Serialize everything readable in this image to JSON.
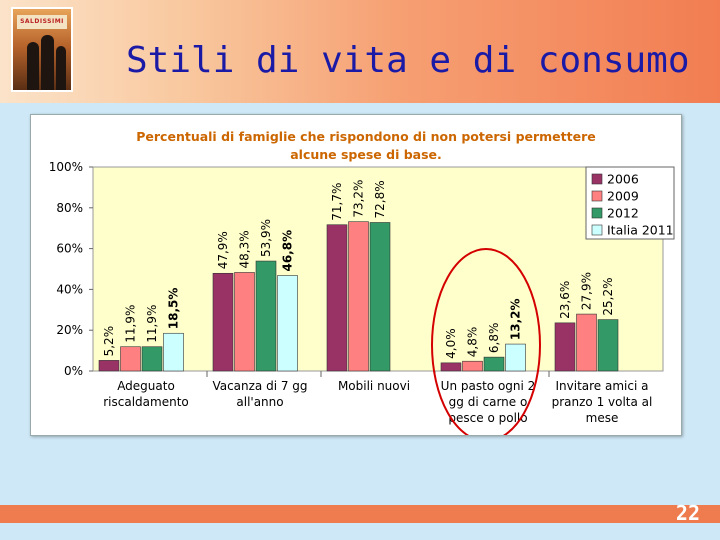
{
  "slide": {
    "title": "Stili di vita e di consumo",
    "page_number": "22",
    "photo_sign": "SALDISSIMI"
  },
  "colors": {
    "header_start": "#fbe3c9",
    "header_end": "#f27d52",
    "title": "#1a1aa6",
    "plot_bg": "#ffffcc",
    "highlight_ellipse": "#d40000"
  },
  "chart_data": {
    "type": "bar",
    "title_lines": [
      "Percentuali di famiglie che rispondono di non potersi permettere",
      "alcune spese di base."
    ],
    "categories": [
      [
        "Adeguato",
        "riscaldamento"
      ],
      [
        "Vacanza di 7 gg",
        "all'anno"
      ],
      [
        "Mobili nuovi"
      ],
      [
        "Un pasto ogni 2",
        "gg di carne o",
        "pesce o pollo"
      ],
      [
        "Invitare amici a",
        "pranzo 1 volta al",
        "mese"
      ]
    ],
    "series": [
      {
        "name": "2006",
        "color": "#993366",
        "values": [
          5.2,
          47.9,
          71.7,
          4.0,
          23.6
        ],
        "labels": [
          "5,2%",
          "47,9%",
          "71,7%",
          "4,0%",
          "23,6%"
        ]
      },
      {
        "name": "2009",
        "color": "#ff8080",
        "values": [
          11.9,
          48.3,
          73.2,
          4.8,
          27.9
        ],
        "labels": [
          "11,9%",
          "48,3%",
          "73,2%",
          "4,8%",
          "27,9%"
        ]
      },
      {
        "name": "2012",
        "color": "#339966",
        "values": [
          11.9,
          53.9,
          72.8,
          6.8,
          25.2
        ],
        "labels": [
          "11,9%",
          "53,9%",
          "72,8%",
          "6,8%",
          "25,2%"
        ]
      },
      {
        "name": "Italia 2011",
        "color": "#ccffff",
        "values": [
          18.5,
          46.8,
          null,
          13.2,
          null
        ],
        "labels": [
          "18,5%",
          "46,8%",
          "",
          "13,2%",
          ""
        ]
      }
    ],
    "y_ticks": [
      "0%",
      "20%",
      "40%",
      "60%",
      "80%",
      "100%"
    ],
    "ylim": [
      0,
      100
    ],
    "grid": false,
    "legend_position": "top-right",
    "highlighted_category_index": 3
  }
}
